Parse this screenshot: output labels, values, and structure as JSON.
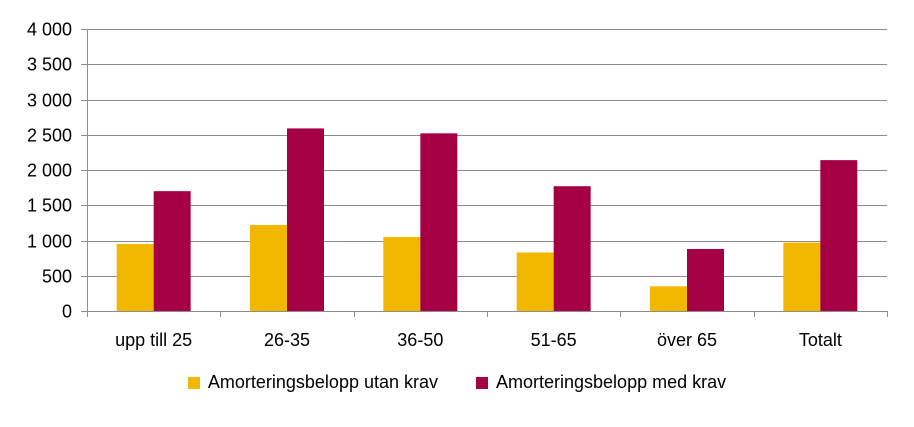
{
  "chart_data": {
    "type": "bar",
    "categories": [
      "upp till 25",
      "26-35",
      "36-50",
      "51-65",
      "över 65",
      "Totalt"
    ],
    "series": [
      {
        "name": "Amorteringsbelopp utan krav",
        "color": "#F2B800",
        "values": [
          950,
          1220,
          1050,
          830,
          350,
          970
        ]
      },
      {
        "name": "Amorteringsbelopp med krav",
        "color": "#A50044",
        "values": [
          1700,
          2590,
          2520,
          1770,
          880,
          2140
        ]
      }
    ],
    "yticks": [
      "0",
      "500",
      "1 000",
      "1 500",
      "2 000",
      "2 500",
      "3 000",
      "3 500",
      "4 000"
    ],
    "ylim": [
      0,
      4000
    ],
    "grid": true,
    "legend_position": "bottom"
  }
}
